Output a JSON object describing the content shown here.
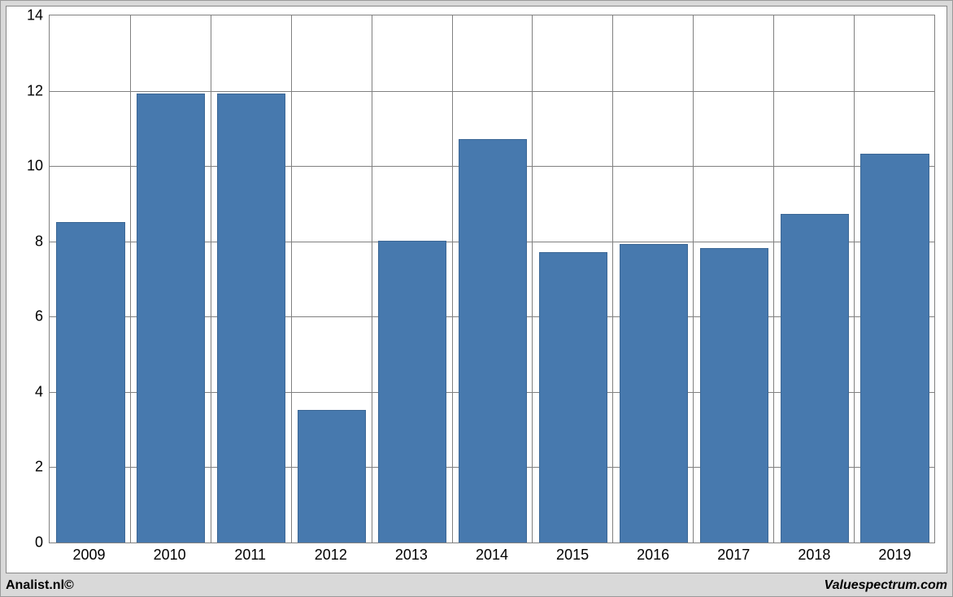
{
  "chart": {
    "type": "bar",
    "categories": [
      "2009",
      "2010",
      "2011",
      "2012",
      "2013",
      "2014",
      "2015",
      "2016",
      "2017",
      "2018",
      "2019"
    ],
    "values": [
      8.5,
      11.9,
      11.9,
      3.5,
      8.0,
      10.7,
      7.7,
      7.9,
      7.8,
      8.7,
      10.3
    ],
    "bar_color": "#4779ae",
    "bar_border_color": "#3c6795",
    "ylim": [
      0,
      14
    ],
    "ytick_step": 2,
    "yticks": [
      0,
      2,
      4,
      6,
      8,
      10,
      12,
      14
    ],
    "grid_color": "#808080",
    "plot_background": "#ffffff",
    "page_background": "#d9d9d9",
    "tick_fontsize": 18,
    "bar_width_ratio": 0.83
  },
  "footer": {
    "left": "Analist.nl©",
    "right": "Valuespectrum.com"
  }
}
